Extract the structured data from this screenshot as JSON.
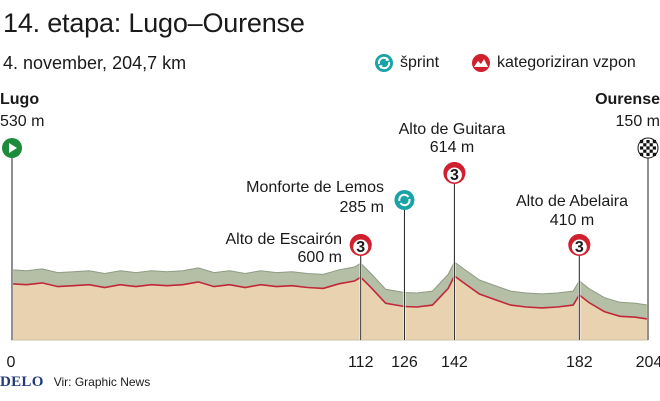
{
  "header": {
    "title": "14. etapa: Lugo–Ourense",
    "subtitle": "4. november, 204,7 km"
  },
  "legend": {
    "sprint_label": "šprint",
    "climb_label": "kategoriziran vzpon"
  },
  "colors": {
    "start_green": "#1e8a3c",
    "sprint_teal": "#1aa3a6",
    "climb_red": "#d0202e",
    "profile_fill": "#e8d2b0",
    "profile_band": "#b4bfa6",
    "profile_line": "#c0283a",
    "brand_blue": "#223a7a"
  },
  "chart_data": {
    "type": "area",
    "title": "14. etapa: Lugo–Ourense",
    "distance_km": 204.7,
    "x_ticks": [
      0,
      112,
      126,
      142,
      182,
      204
    ],
    "waypoints": [
      {
        "name": "Lugo",
        "elevation": "530 m",
        "km": 0,
        "kind": "start"
      },
      {
        "name": "Alto de Escairón",
        "elevation": "600 m",
        "km": 112,
        "kind": "climb",
        "category": "3"
      },
      {
        "name": "Monforte de Lemos",
        "elevation": "285 m",
        "km": 126,
        "kind": "sprint"
      },
      {
        "name": "Alto de Guitara",
        "elevation": "614 m",
        "km": 142,
        "kind": "climb",
        "category": "3"
      },
      {
        "name": "Alto de Abelaira",
        "elevation": "410 m",
        "km": 182,
        "kind": "climb",
        "category": "3"
      },
      {
        "name": "Ourense",
        "elevation": "150 m",
        "km": 204,
        "kind": "finish"
      }
    ],
    "profile": {
      "x": [
        0,
        5,
        10,
        15,
        20,
        25,
        30,
        35,
        40,
        45,
        50,
        55,
        60,
        65,
        70,
        75,
        80,
        85,
        90,
        95,
        100,
        105,
        110,
        112,
        115,
        120,
        126,
        130,
        135,
        140,
        142,
        145,
        150,
        155,
        160,
        165,
        170,
        175,
        180,
        182,
        185,
        190,
        195,
        200,
        204
      ],
      "y": [
        530,
        520,
        540,
        500,
        510,
        520,
        490,
        520,
        500,
        520,
        510,
        520,
        550,
        500,
        520,
        490,
        520,
        500,
        510,
        490,
        480,
        530,
        560,
        600,
        500,
        320,
        285,
        280,
        300,
        480,
        614,
        540,
        420,
        360,
        300,
        280,
        270,
        280,
        300,
        410,
        330,
        230,
        180,
        170,
        150
      ]
    }
  },
  "footer": {
    "brand": "DELO",
    "source": "Vir: Graphic News"
  }
}
